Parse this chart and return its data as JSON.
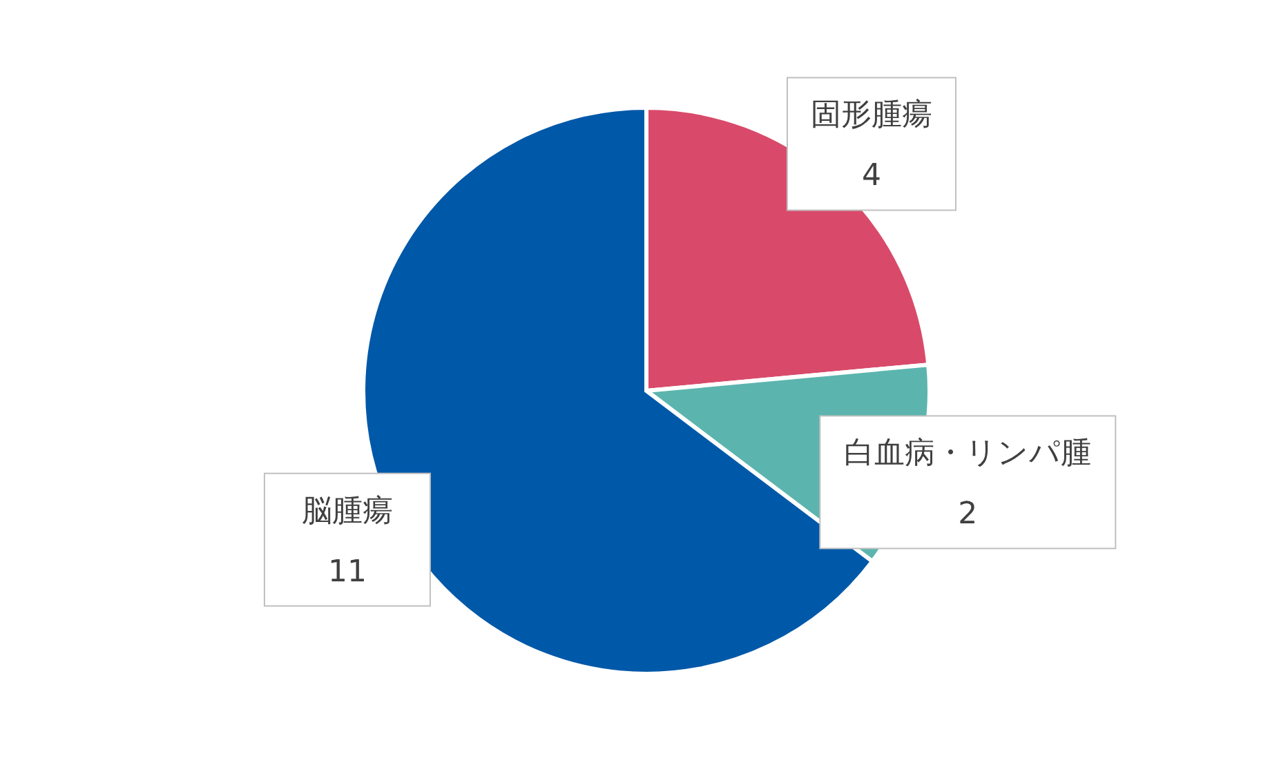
{
  "chart_data": {
    "type": "pie",
    "categories": [
      "固形腫瘍",
      "白血病・リンパ腫",
      "脳腫瘍"
    ],
    "values": [
      4,
      2,
      11
    ],
    "colors": [
      "#d94a6a",
      "#5bb5ae",
      "#0058a8"
    ],
    "data_labels": true,
    "legend": false
  }
}
